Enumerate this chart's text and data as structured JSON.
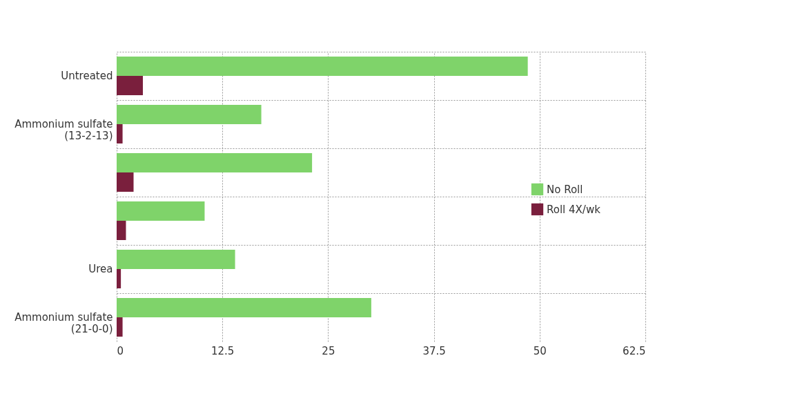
{
  "chart_data": {
    "type": "bar",
    "orientation": "horizontal",
    "categories": [
      "Untreated",
      "Ammonium sulfate\n(13-2-13)",
      null,
      null,
      "Urea",
      "Ammonium sulfate\n(21-0-0)"
    ],
    "series": [
      {
        "name": "No Roll",
        "color": "#7fd36a",
        "values": [
          48.6,
          17.1,
          23.1,
          10.4,
          14.0,
          30.1
        ]
      },
      {
        "name": "Roll 4X/wk",
        "color": "#7a1f3d",
        "values": [
          3.1,
          0.7,
          2.0,
          1.1,
          0.5,
          0.7
        ]
      }
    ],
    "xlim": [
      0,
      62.5
    ],
    "xticks": [
      0,
      12.5,
      25,
      37.5,
      50,
      62.5
    ],
    "grid": true,
    "legend": "right"
  }
}
